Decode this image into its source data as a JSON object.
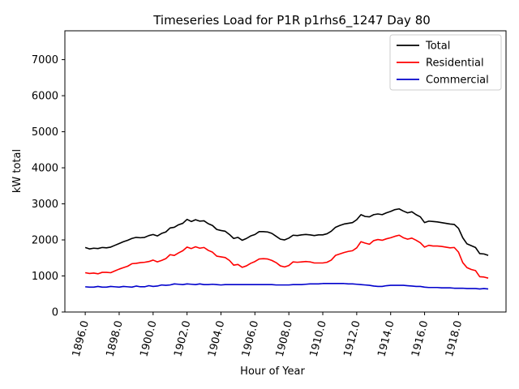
{
  "chart_data": {
    "type": "line",
    "title": "Timeseries Load for P1R p1rhs6_1247  Day 80",
    "xlabel": "Hour of Year",
    "ylabel": "kW total",
    "xlim": [
      1894.8,
      1920.8
    ],
    "ylim": [
      0,
      7800
    ],
    "xticks": [
      1896,
      1898,
      1900,
      1902,
      1904,
      1906,
      1908,
      1910,
      1912,
      1914,
      1916,
      1918
    ],
    "xtick_labels": [
      "1896.0",
      "1898.0",
      "1900.0",
      "1902.0",
      "1904.0",
      "1906.0",
      "1908.0",
      "1910.0",
      "1912.0",
      "1914.0",
      "1916.0",
      "1918.0"
    ],
    "yticks": [
      0,
      1000,
      2000,
      3000,
      4000,
      5000,
      6000,
      7000
    ],
    "ytick_labels": [
      "0",
      "1000",
      "2000",
      "3000",
      "4000",
      "5000",
      "6000",
      "7000"
    ],
    "legend_position": "top-right",
    "series": [
      {
        "name": "Total",
        "color": "#000000",
        "x": [
          1896.0,
          1896.25,
          1896.5,
          1896.75,
          1897.0,
          1897.25,
          1897.5,
          1897.75,
          1898.0,
          1898.25,
          1898.5,
          1898.75,
          1899.0,
          1899.25,
          1899.5,
          1899.75,
          1900.0,
          1900.25,
          1900.5,
          1900.75,
          1901.0,
          1901.25,
          1901.5,
          1901.75,
          1902.0,
          1902.25,
          1902.5,
          1902.75,
          1903.0,
          1903.25,
          1903.5,
          1903.75,
          1904.0,
          1904.25,
          1904.5,
          1904.75,
          1905.0,
          1905.25,
          1905.5,
          1905.75,
          1906.0,
          1906.25,
          1906.5,
          1906.75,
          1907.0,
          1907.25,
          1907.5,
          1907.75,
          1908.0,
          1908.25,
          1908.5,
          1908.75,
          1909.0,
          1909.25,
          1909.5,
          1909.75,
          1910.0,
          1910.25,
          1910.5,
          1910.75,
          1911.0,
          1911.25,
          1911.5,
          1911.75,
          1912.0,
          1912.25,
          1912.5,
          1912.75,
          1913.0,
          1913.25,
          1913.5,
          1913.75,
          1914.0,
          1914.25,
          1914.5,
          1914.75,
          1915.0,
          1915.25,
          1915.5,
          1915.75,
          1916.0,
          1916.25,
          1916.5,
          1916.75,
          1917.0,
          1917.25,
          1917.5,
          1917.75,
          1918.0,
          1918.25,
          1918.5,
          1918.75,
          1919.0,
          1919.25,
          1919.5,
          1919.75
        ],
        "values": [
          1790,
          1750,
          1770,
          1760,
          1790,
          1780,
          1800,
          1850,
          1900,
          1950,
          1990,
          2040,
          2070,
          2060,
          2070,
          2120,
          2150,
          2110,
          2180,
          2220,
          2330,
          2350,
          2420,
          2460,
          2570,
          2510,
          2560,
          2520,
          2530,
          2450,
          2400,
          2290,
          2260,
          2240,
          2150,
          2040,
          2070,
          1990,
          2040,
          2110,
          2150,
          2230,
          2230,
          2220,
          2180,
          2100,
          2020,
          2000,
          2050,
          2130,
          2120,
          2140,
          2150,
          2140,
          2120,
          2140,
          2140,
          2170,
          2240,
          2350,
          2400,
          2440,
          2460,
          2480,
          2560,
          2700,
          2650,
          2640,
          2700,
          2720,
          2700,
          2750,
          2790,
          2840,
          2860,
          2800,
          2750,
          2780,
          2700,
          2640,
          2480,
          2520,
          2510,
          2500,
          2480,
          2460,
          2440,
          2430,
          2320,
          2060,
          1890,
          1840,
          1790,
          1620,
          1610,
          1570
        ]
      },
      {
        "name": "Residential",
        "color": "#ff0000",
        "x": [
          1896.0,
          1896.25,
          1896.5,
          1896.75,
          1897.0,
          1897.25,
          1897.5,
          1897.75,
          1898.0,
          1898.25,
          1898.5,
          1898.75,
          1899.0,
          1899.25,
          1899.5,
          1899.75,
          1900.0,
          1900.25,
          1900.5,
          1900.75,
          1901.0,
          1901.25,
          1901.5,
          1901.75,
          1902.0,
          1902.25,
          1902.5,
          1902.75,
          1903.0,
          1903.25,
          1903.5,
          1903.75,
          1904.0,
          1904.25,
          1904.5,
          1904.75,
          1905.0,
          1905.25,
          1905.5,
          1905.75,
          1906.0,
          1906.25,
          1906.5,
          1906.75,
          1907.0,
          1907.25,
          1907.5,
          1907.75,
          1908.0,
          1908.25,
          1908.5,
          1908.75,
          1909.0,
          1909.25,
          1909.5,
          1909.75,
          1910.0,
          1910.25,
          1910.5,
          1910.75,
          1911.0,
          1911.25,
          1911.5,
          1911.75,
          1912.0,
          1912.25,
          1912.5,
          1912.75,
          1913.0,
          1913.25,
          1913.5,
          1913.75,
          1914.0,
          1914.25,
          1914.5,
          1914.75,
          1915.0,
          1915.25,
          1915.5,
          1915.75,
          1916.0,
          1916.25,
          1916.5,
          1916.75,
          1917.0,
          1917.25,
          1917.5,
          1917.75,
          1918.0,
          1918.25,
          1918.5,
          1918.75,
          1919.0,
          1919.25,
          1919.5,
          1919.75
        ],
        "values": [
          1090,
          1070,
          1080,
          1060,
          1100,
          1100,
          1090,
          1140,
          1190,
          1230,
          1270,
          1340,
          1350,
          1370,
          1380,
          1400,
          1440,
          1390,
          1430,
          1480,
          1590,
          1570,
          1640,
          1700,
          1800,
          1760,
          1810,
          1770,
          1790,
          1710,
          1660,
          1550,
          1530,
          1510,
          1430,
          1300,
          1320,
          1240,
          1280,
          1350,
          1400,
          1470,
          1480,
          1470,
          1430,
          1370,
          1280,
          1250,
          1290,
          1390,
          1380,
          1390,
          1400,
          1390,
          1360,
          1360,
          1360,
          1380,
          1440,
          1570,
          1610,
          1650,
          1680,
          1700,
          1780,
          1950,
          1910,
          1880,
          1980,
          2010,
          1990,
          2030,
          2060,
          2100,
          2130,
          2060,
          2020,
          2050,
          1990,
          1920,
          1800,
          1850,
          1830,
          1830,
          1820,
          1800,
          1780,
          1790,
          1660,
          1370,
          1230,
          1180,
          1150,
          980,
          970,
          940
        ]
      },
      {
        "name": "Commercial",
        "color": "#0000cc",
        "x": [
          1896.0,
          1896.25,
          1896.5,
          1896.75,
          1897.0,
          1897.25,
          1897.5,
          1897.75,
          1898.0,
          1898.25,
          1898.5,
          1898.75,
          1899.0,
          1899.25,
          1899.5,
          1899.75,
          1900.0,
          1900.25,
          1900.5,
          1900.75,
          1901.0,
          1901.25,
          1901.5,
          1901.75,
          1902.0,
          1902.25,
          1902.5,
          1902.75,
          1903.0,
          1903.25,
          1903.5,
          1903.75,
          1904.0,
          1904.25,
          1904.5,
          1904.75,
          1905.0,
          1905.25,
          1905.5,
          1905.75,
          1906.0,
          1906.25,
          1906.5,
          1906.75,
          1907.0,
          1907.25,
          1907.5,
          1907.75,
          1908.0,
          1908.25,
          1908.5,
          1908.75,
          1909.0,
          1909.25,
          1909.5,
          1909.75,
          1910.0,
          1910.25,
          1910.5,
          1910.75,
          1911.0,
          1911.25,
          1911.5,
          1911.75,
          1912.0,
          1912.25,
          1912.5,
          1912.75,
          1913.0,
          1913.25,
          1913.5,
          1913.75,
          1914.0,
          1914.25,
          1914.5,
          1914.75,
          1915.0,
          1915.25,
          1915.5,
          1915.75,
          1916.0,
          1916.25,
          1916.5,
          1916.75,
          1917.0,
          1917.25,
          1917.5,
          1917.75,
          1918.0,
          1918.25,
          1918.5,
          1918.75,
          1919.0,
          1919.25,
          1919.5,
          1919.75
        ],
        "values": [
          700,
          690,
          690,
          710,
          690,
          690,
          710,
          700,
          690,
          710,
          700,
          690,
          720,
          700,
          700,
          730,
          710,
          720,
          750,
          740,
          750,
          780,
          770,
          760,
          780,
          770,
          760,
          780,
          760,
          760,
          770,
          760,
          750,
          760,
          760,
          760,
          760,
          760,
          760,
          760,
          760,
          760,
          760,
          760,
          760,
          750,
          750,
          750,
          750,
          760,
          760,
          760,
          770,
          780,
          780,
          780,
          790,
          790,
          790,
          790,
          790,
          790,
          780,
          780,
          770,
          760,
          750,
          740,
          720,
          710,
          710,
          730,
          740,
          740,
          740,
          740,
          730,
          720,
          710,
          710,
          690,
          680,
          680,
          680,
          670,
          670,
          670,
          660,
          660,
          660,
          650,
          650,
          650,
          640,
          650,
          640
        ]
      }
    ]
  }
}
